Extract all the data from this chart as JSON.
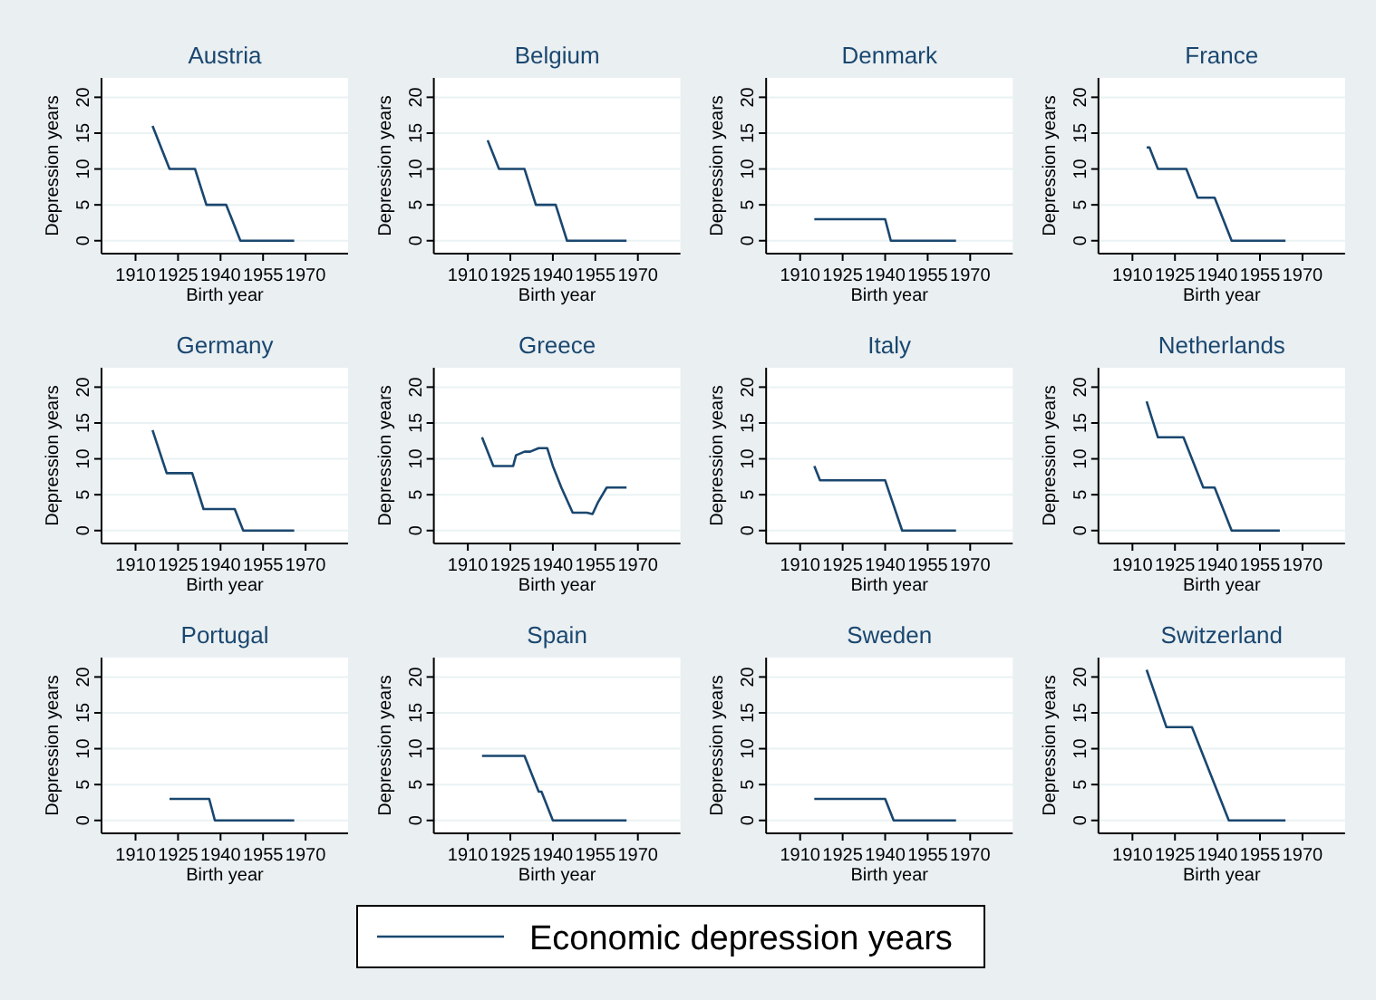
{
  "chart_data": [
    {
      "type": "line",
      "title": "Austria",
      "xlabel": "Birth year",
      "ylabel": "Depression years",
      "xlim": [
        1898,
        1985
      ],
      "ylim": [
        -1.8,
        22.7
      ],
      "xticks": [
        1910,
        1925,
        1940,
        1955,
        1970
      ],
      "yticks": [
        0,
        5,
        10,
        15,
        20
      ],
      "grid": "y",
      "legend": "bottom",
      "series": [
        {
          "name": "Economic depression years",
          "color": "#1a476f",
          "x": [
            1916,
            1922,
            1931,
            1935,
            1942,
            1947,
            1966
          ],
          "values": [
            16,
            10,
            10,
            5,
            5,
            0,
            0
          ]
        }
      ]
    },
    {
      "type": "line",
      "title": "Belgium",
      "xlabel": "Birth year",
      "ylabel": "Depression years",
      "xlim": [
        1898,
        1985
      ],
      "ylim": [
        -1.8,
        22.7
      ],
      "xticks": [
        1910,
        1925,
        1940,
        1955,
        1970
      ],
      "yticks": [
        0,
        5,
        10,
        15,
        20
      ],
      "grid": "y",
      "series": [
        {
          "color": "#1a476f",
          "x": [
            1917,
            1921,
            1930,
            1934,
            1941,
            1945,
            1966
          ],
          "values": [
            14,
            10,
            10,
            5,
            5,
            0,
            0
          ]
        }
      ]
    },
    {
      "type": "line",
      "title": "Denmark",
      "xlabel": "Birth year",
      "ylabel": "Depression years",
      "xlim": [
        1898,
        1985
      ],
      "ylim": [
        -1.8,
        22.7
      ],
      "xticks": [
        1910,
        1925,
        1940,
        1955,
        1970
      ],
      "yticks": [
        0,
        5,
        10,
        15,
        20
      ],
      "grid": "y",
      "series": [
        {
          "color": "#1a476f",
          "x": [
            1915,
            1940,
            1942,
            1965
          ],
          "values": [
            3,
            3,
            0,
            0
          ]
        }
      ]
    },
    {
      "type": "line",
      "title": "France",
      "xlabel": "Birth year",
      "ylabel": "Depression years",
      "xlim": [
        1898,
        1985
      ],
      "ylim": [
        -1.8,
        22.7
      ],
      "xticks": [
        1910,
        1925,
        1940,
        1955,
        1970
      ],
      "yticks": [
        0,
        5,
        10,
        15,
        20
      ],
      "grid": "y",
      "series": [
        {
          "color": "#1a476f",
          "x": [
            1915,
            1916,
            1919,
            1929,
            1933,
            1939,
            1945,
            1964
          ],
          "values": [
            13,
            13,
            10,
            10,
            6,
            6,
            0,
            0
          ]
        }
      ]
    },
    {
      "type": "line",
      "title": "Germany",
      "xlabel": "Birth year",
      "ylabel": "Depression years",
      "xlim": [
        1898,
        1985
      ],
      "ylim": [
        -1.8,
        22.7
      ],
      "xticks": [
        1910,
        1925,
        1940,
        1955,
        1970
      ],
      "yticks": [
        0,
        5,
        10,
        15,
        20
      ],
      "grid": "y",
      "series": [
        {
          "color": "#1a476f",
          "x": [
            1916,
            1921,
            1930,
            1934,
            1945,
            1948,
            1966
          ],
          "values": [
            14,
            8,
            8,
            3,
            3,
            0,
            0
          ]
        }
      ]
    },
    {
      "type": "line",
      "title": "Greece",
      "xlabel": "Birth year",
      "ylabel": "Depression years",
      "xlim": [
        1898,
        1985
      ],
      "ylim": [
        -1.8,
        22.7
      ],
      "xticks": [
        1910,
        1925,
        1940,
        1955,
        1970
      ],
      "yticks": [
        0,
        5,
        10,
        15,
        20
      ],
      "grid": "y",
      "series": [
        {
          "color": "#1a476f",
          "x": [
            1915,
            1919,
            1926,
            1927,
            1930,
            1932,
            1935,
            1938,
            1940,
            1943,
            1947,
            1952,
            1954,
            1956,
            1959,
            1966
          ],
          "values": [
            13,
            9,
            9,
            10.5,
            11,
            11,
            11.5,
            11.5,
            9,
            6,
            2.5,
            2.5,
            2.3,
            4,
            6,
            6
          ]
        }
      ]
    },
    {
      "type": "line",
      "title": "Italy",
      "xlabel": "Birth year",
      "ylabel": "Depression years",
      "xlim": [
        1898,
        1985
      ],
      "ylim": [
        -1.8,
        22.7
      ],
      "xticks": [
        1910,
        1925,
        1940,
        1955,
        1970
      ],
      "yticks": [
        0,
        5,
        10,
        15,
        20
      ],
      "grid": "y",
      "series": [
        {
          "color": "#1a476f",
          "x": [
            1915,
            1917,
            1940,
            1946,
            1965
          ],
          "values": [
            9,
            7,
            7,
            0,
            0
          ]
        }
      ]
    },
    {
      "type": "line",
      "title": "Netherlands",
      "xlabel": "Birth year",
      "ylabel": "Depression years",
      "xlim": [
        1898,
        1985
      ],
      "ylim": [
        -1.8,
        22.7
      ],
      "xticks": [
        1910,
        1925,
        1940,
        1955,
        1970
      ],
      "yticks": [
        0,
        5,
        10,
        15,
        20
      ],
      "grid": "y",
      "series": [
        {
          "color": "#1a476f",
          "x": [
            1915,
            1919,
            1928,
            1935,
            1939,
            1945,
            1962
          ],
          "values": [
            18,
            13,
            13,
            6,
            6,
            0,
            0
          ]
        }
      ]
    },
    {
      "type": "line",
      "title": "Portugal",
      "xlabel": "Birth year",
      "ylabel": "Depression years",
      "xlim": [
        1898,
        1985
      ],
      "ylim": [
        -1.8,
        22.7
      ],
      "xticks": [
        1910,
        1925,
        1940,
        1955,
        1970
      ],
      "yticks": [
        0,
        5,
        10,
        15,
        20
      ],
      "grid": "y",
      "series": [
        {
          "color": "#1a476f",
          "x": [
            1922,
            1936,
            1938,
            1966
          ],
          "values": [
            3,
            3,
            0,
            0
          ]
        }
      ]
    },
    {
      "type": "line",
      "title": "Spain",
      "xlabel": "Birth year",
      "ylabel": "Depression years",
      "xlim": [
        1898,
        1985
      ],
      "ylim": [
        -1.8,
        22.7
      ],
      "xticks": [
        1910,
        1925,
        1940,
        1955,
        1970
      ],
      "yticks": [
        0,
        5,
        10,
        15,
        20
      ],
      "grid": "y",
      "series": [
        {
          "color": "#1a476f",
          "x": [
            1915,
            1930,
            1935,
            1936,
            1940,
            1966
          ],
          "values": [
            9,
            9,
            4,
            4,
            0,
            0
          ]
        }
      ]
    },
    {
      "type": "line",
      "title": "Sweden",
      "xlabel": "Birth year",
      "ylabel": "Depression years",
      "xlim": [
        1898,
        1985
      ],
      "ylim": [
        -1.8,
        22.7
      ],
      "xticks": [
        1910,
        1925,
        1940,
        1955,
        1970
      ],
      "yticks": [
        0,
        5,
        10,
        15,
        20
      ],
      "grid": "y",
      "series": [
        {
          "color": "#1a476f",
          "x": [
            1915,
            1940,
            1943,
            1965
          ],
          "values": [
            3,
            3,
            0,
            0
          ]
        }
      ]
    },
    {
      "type": "line",
      "title": "Switzerland",
      "xlabel": "Birth year",
      "ylabel": "Depression years",
      "xlim": [
        1898,
        1985
      ],
      "ylim": [
        -1.8,
        22.7
      ],
      "xticks": [
        1910,
        1925,
        1940,
        1955,
        1970
      ],
      "yticks": [
        0,
        5,
        10,
        15,
        20
      ],
      "grid": "y",
      "series": [
        {
          "color": "#1a476f",
          "x": [
            1915,
            1922,
            1931,
            1944,
            1964
          ],
          "values": [
            21,
            13,
            13,
            0,
            0
          ]
        }
      ]
    }
  ]
}
